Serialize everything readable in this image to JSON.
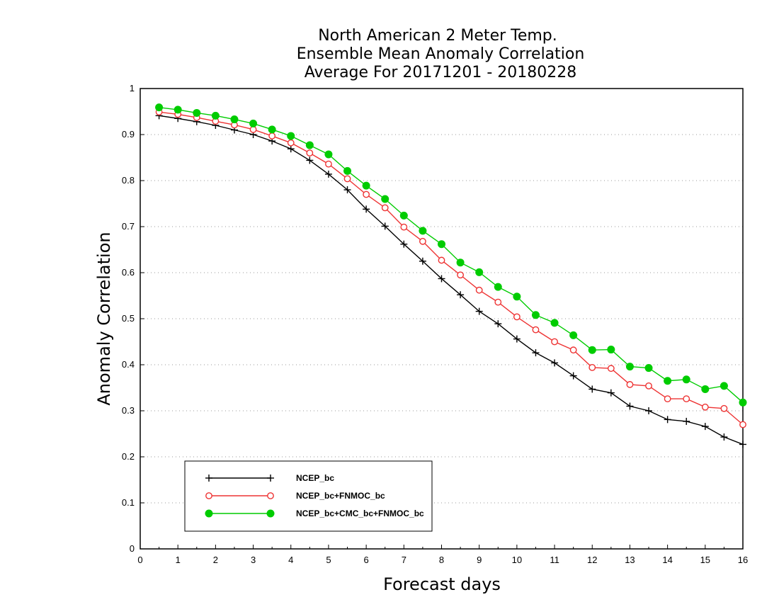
{
  "chart_data": {
    "type": "line",
    "title": [
      "North American 2 Meter Temp.",
      "Ensemble Mean Anomaly Correlation",
      "Average For 20171201 - 20180228"
    ],
    "xlabel": "Forecast days",
    "ylabel": "Anomaly Correlation",
    "xlim": [
      0,
      16
    ],
    "ylim": [
      0,
      1
    ],
    "xticks": [
      0,
      1,
      2,
      3,
      4,
      5,
      6,
      7,
      8,
      9,
      10,
      11,
      12,
      13,
      14,
      15,
      16
    ],
    "yticks": [
      0,
      0.1,
      0.2,
      0.3,
      0.4,
      0.5,
      0.6,
      0.7,
      0.8,
      0.9,
      1
    ],
    "xtick_labels": [
      "0",
      "1",
      "2",
      "3",
      "4",
      "5",
      "6",
      "7",
      "8",
      "9",
      "10",
      "11",
      "12",
      "13",
      "14",
      "15",
      "16"
    ],
    "ytick_labels": [
      "0",
      "0.1",
      "0.2",
      "0.3",
      "0.4",
      "0.5",
      "0.6",
      "0.7",
      "0.8",
      "0.9",
      "1"
    ],
    "grid": "horizontal dotted",
    "legend_position": "bottom-left",
    "x": [
      0.5,
      1,
      1.5,
      2,
      2.5,
      3,
      3.5,
      4,
      4.5,
      5,
      5.5,
      6,
      6.5,
      7,
      7.5,
      8,
      8.5,
      9,
      9.5,
      10,
      10.5,
      11,
      11.5,
      12,
      12.5,
      13,
      13.5,
      14,
      14.5,
      15,
      15.5,
      16
    ],
    "series": [
      {
        "name": "NCEP_bc",
        "color": "#000000",
        "marker": "plus",
        "values": [
          0.941,
          0.935,
          0.928,
          0.92,
          0.91,
          0.9,
          0.886,
          0.869,
          0.844,
          0.814,
          0.78,
          0.738,
          0.701,
          0.662,
          0.625,
          0.587,
          0.552,
          0.516,
          0.489,
          0.456,
          0.426,
          0.404,
          0.376,
          0.347,
          0.339,
          0.31,
          0.3,
          0.281,
          0.277,
          0.266,
          0.243,
          0.227
        ]
      },
      {
        "name": "NCEP_bc+FNMOC_bc",
        "color": "#ee3333",
        "marker": "open-circle",
        "values": [
          0.949,
          0.944,
          0.937,
          0.929,
          0.921,
          0.911,
          0.897,
          0.882,
          0.86,
          0.836,
          0.804,
          0.77,
          0.741,
          0.699,
          0.668,
          0.627,
          0.595,
          0.562,
          0.536,
          0.504,
          0.476,
          0.45,
          0.432,
          0.394,
          0.392,
          0.357,
          0.354,
          0.326,
          0.326,
          0.308,
          0.305,
          0.27
        ]
      },
      {
        "name": "NCEP_bc+CMC_bc+FNMOC_bc",
        "color": "#00cc00",
        "marker": "filled-circle",
        "values": [
          0.959,
          0.954,
          0.947,
          0.941,
          0.933,
          0.924,
          0.911,
          0.897,
          0.877,
          0.857,
          0.821,
          0.789,
          0.76,
          0.724,
          0.691,
          0.662,
          0.622,
          0.601,
          0.569,
          0.548,
          0.508,
          0.491,
          0.464,
          0.432,
          0.433,
          0.396,
          0.393,
          0.365,
          0.368,
          0.347,
          0.354,
          0.318
        ]
      }
    ]
  }
}
